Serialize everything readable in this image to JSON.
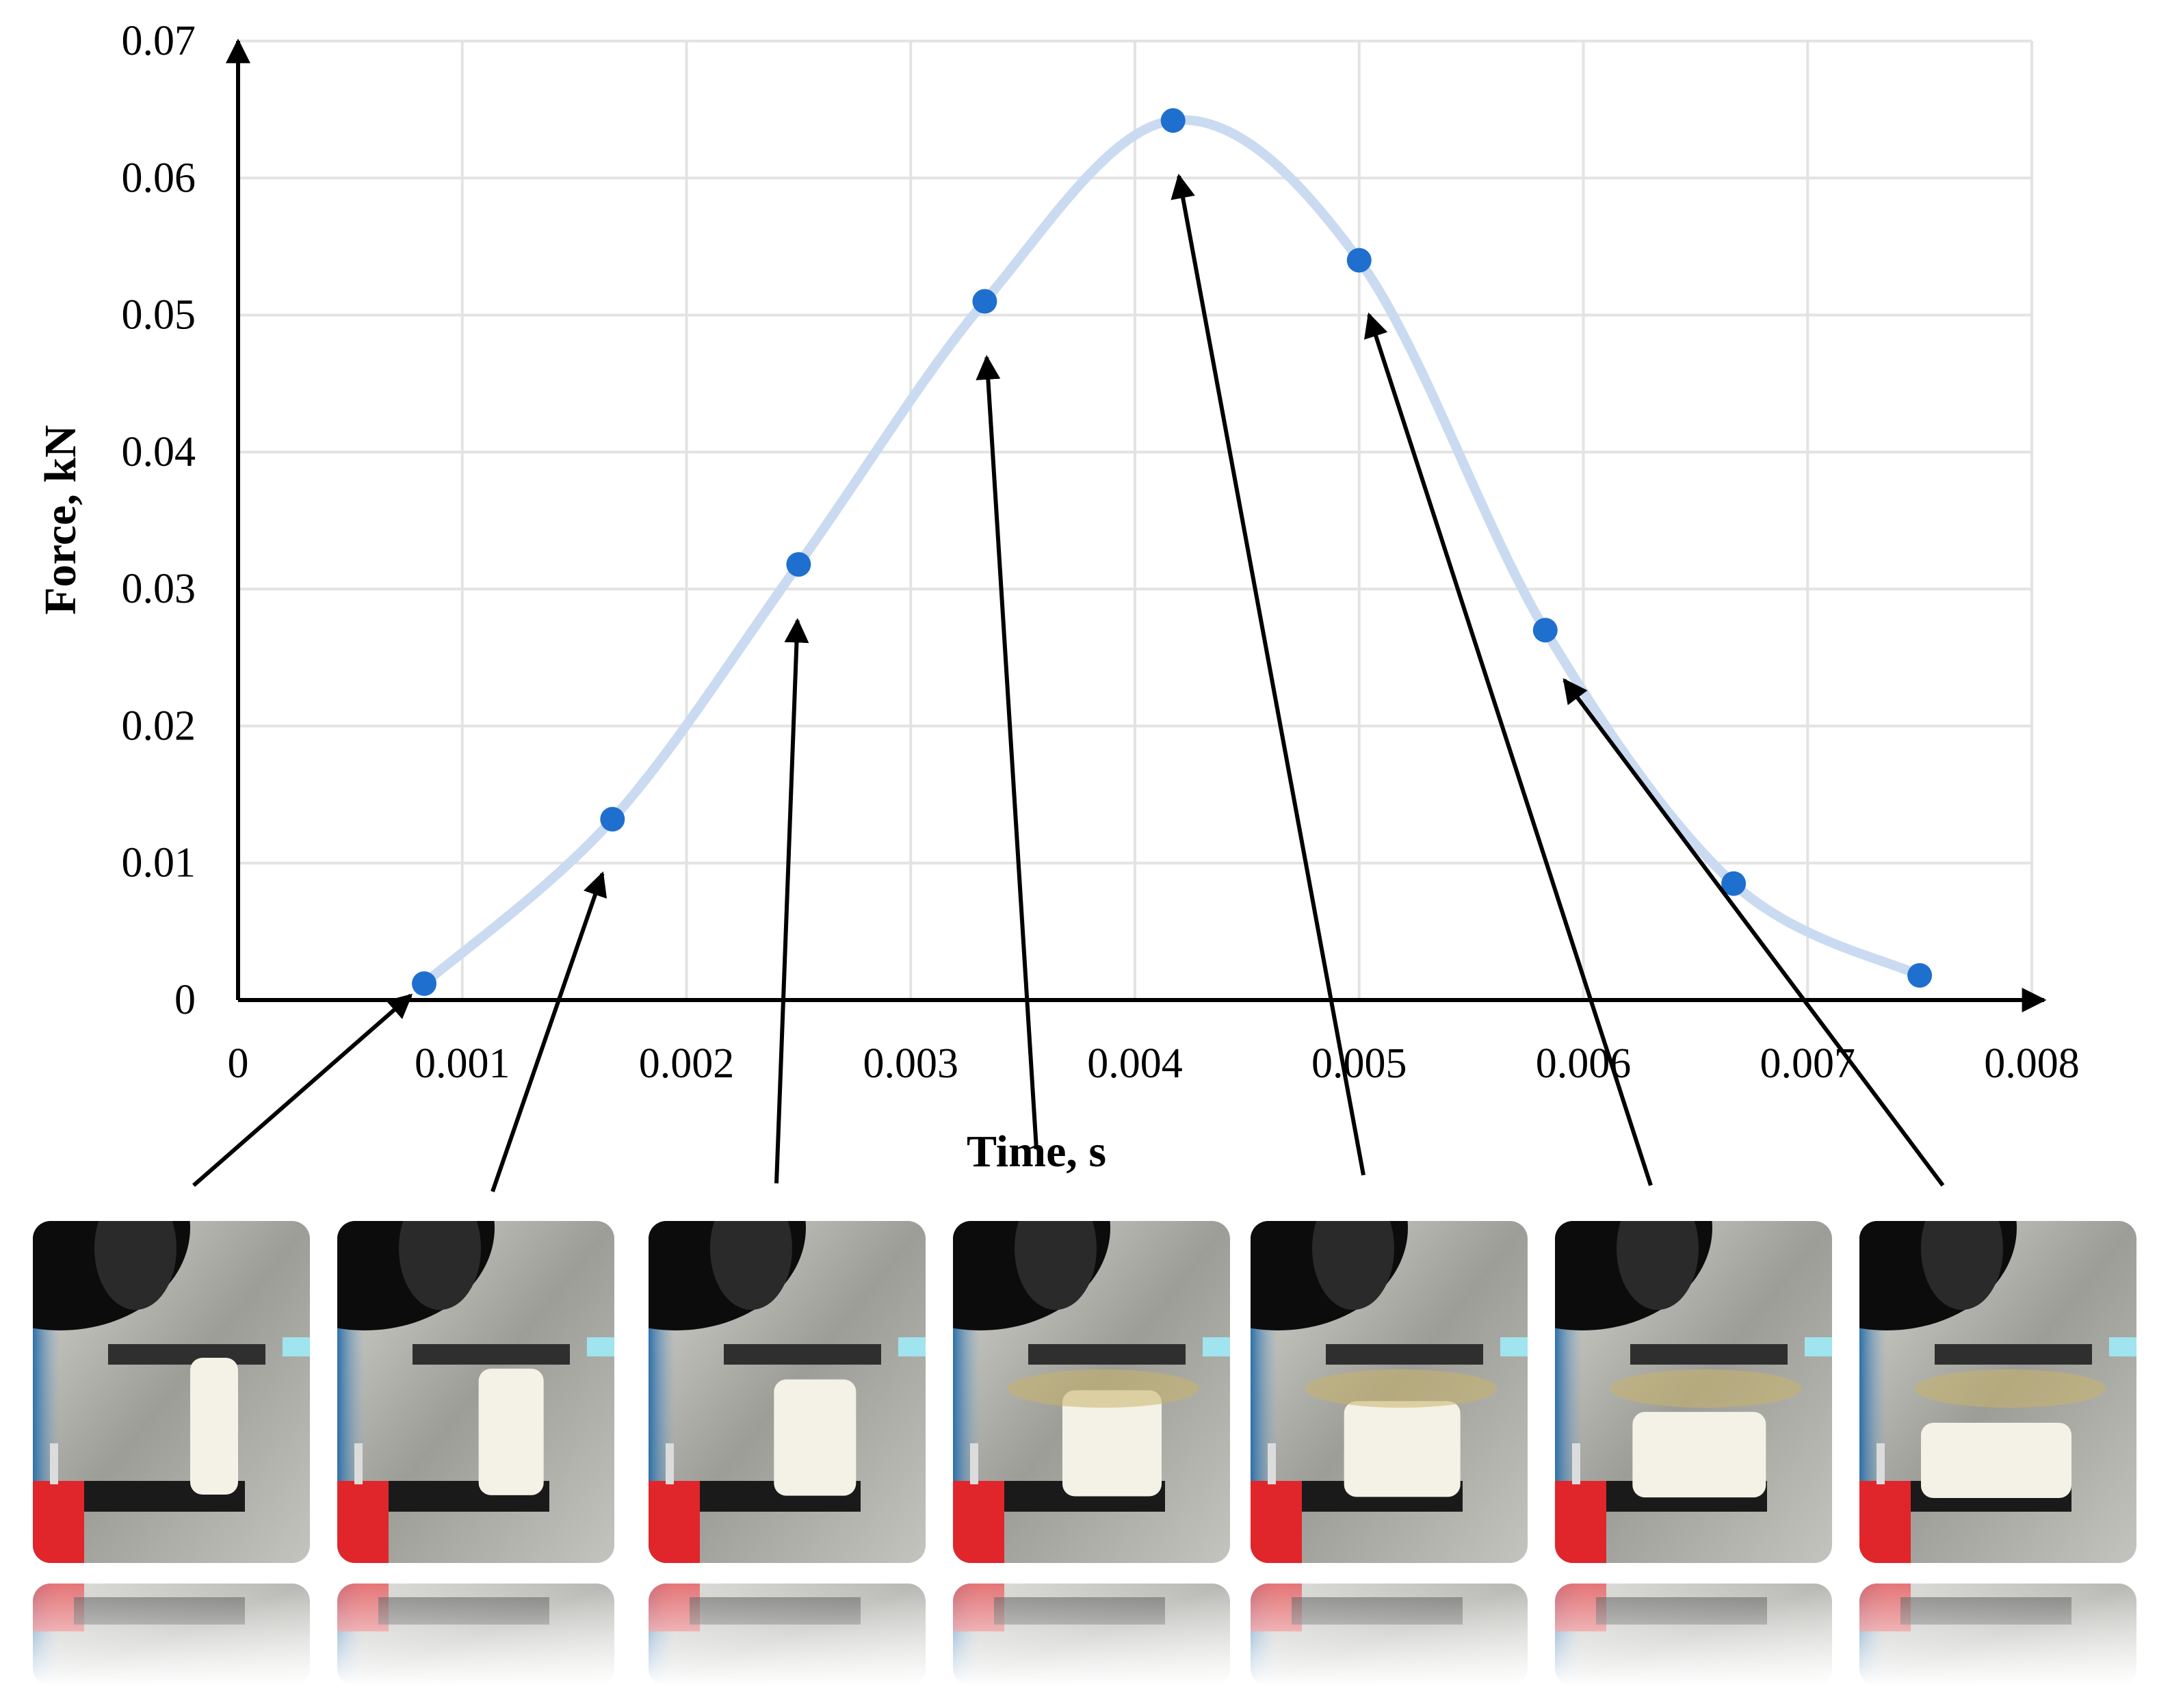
{
  "chart_data": {
    "type": "scatter",
    "xlabel": "Time, s",
    "ylabel": "Force, kN",
    "xlim": [
      0,
      0.008
    ],
    "ylim": [
      0,
      0.07
    ],
    "x_ticks": [
      "0",
      "0.001",
      "0.002",
      "0.003",
      "0.004",
      "0.005",
      "0.006",
      "0.007",
      "0.008"
    ],
    "y_ticks": [
      "0",
      "0.01",
      "0.02",
      "0.03",
      "0.04",
      "0.05",
      "0.06",
      "0.07"
    ],
    "grid": true,
    "smoothed_line": true,
    "series": [
      {
        "x": [
          0.00083,
          0.00167,
          0.0025,
          0.00333,
          0.00417,
          0.005,
          0.00583,
          0.00667,
          0.0075
        ],
        "y": [
          0.0012,
          0.0132,
          0.0318,
          0.051,
          0.0642,
          0.054,
          0.027,
          0.0085,
          0.0018
        ]
      }
    ],
    "colors": {
      "line": "#c9daf1",
      "points": "#1f6fcf",
      "grid": "#e3e3e3",
      "axes": "#000000"
    },
    "annotations": {
      "type": "arrows",
      "frame_to_point": [
        0,
        1,
        2,
        3,
        4,
        5,
        6
      ]
    }
  },
  "frames": [
    {
      "index": 1
    },
    {
      "index": 2
    },
    {
      "index": 3
    },
    {
      "index": 4
    },
    {
      "index": 5
    },
    {
      "index": 6
    },
    {
      "index": 7
    }
  ]
}
